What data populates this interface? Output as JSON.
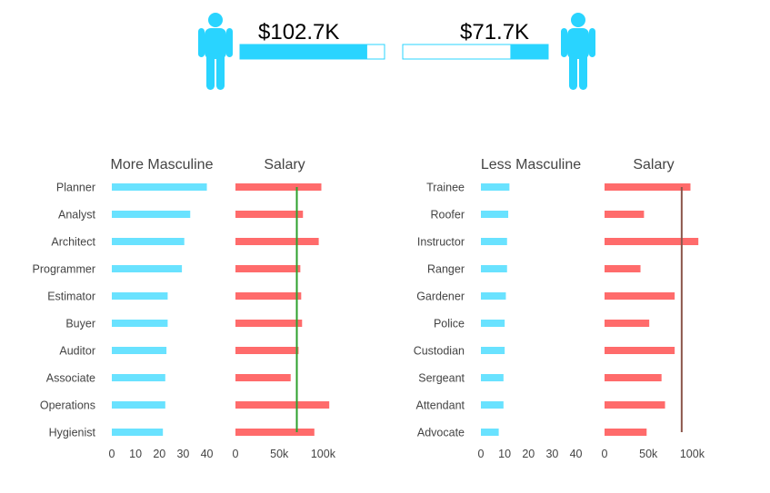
{
  "header": {
    "left_value": "$102.7K",
    "right_value": "$71.7K",
    "left_fill_fraction": 0.88,
    "right_fill_fraction": 0.26,
    "icon_color": "#29D4FF"
  },
  "colors": {
    "masculinity_bar": "#69E2FF",
    "salary_bar": "#FF6B6B",
    "left_reference_line": "#2CA02C",
    "right_reference_line": "#8C564B"
  },
  "chart_data": [
    {
      "type": "bar",
      "orientation": "horizontal",
      "title": "More Masculine",
      "categories": [
        "Planner",
        "Analyst",
        "Architect",
        "Programmer",
        "Estimator",
        "Buyer",
        "Auditor",
        "Associate",
        "Operations",
        "Hygienist"
      ],
      "values": [
        40,
        33,
        30.5,
        29.5,
        23.5,
        23.5,
        23,
        22.5,
        22.5,
        21.5
      ],
      "xlim": [
        0,
        44
      ],
      "xticks": [
        0,
        10,
        20,
        30,
        40
      ],
      "xtick_labels": [
        "0",
        "10",
        "20",
        "30",
        "40"
      ]
    },
    {
      "type": "bar",
      "orientation": "horizontal",
      "title": "Salary",
      "categories": [
        "Planner",
        "Analyst",
        "Architect",
        "Programmer",
        "Estimator",
        "Buyer",
        "Auditor",
        "Associate",
        "Operations",
        "Hygienist"
      ],
      "values": [
        98000,
        77000,
        95000,
        74000,
        75000,
        76000,
        72000,
        63000,
        107000,
        90000
      ],
      "reference_line": 70000,
      "xlim": [
        0,
        112000
      ],
      "xticks": [
        0,
        50000,
        100000
      ],
      "xtick_labels": [
        "0",
        "50k",
        "100k"
      ]
    },
    {
      "type": "bar",
      "orientation": "horizontal",
      "title": "Less Masculine",
      "categories": [
        "Trainee",
        "Roofer",
        "Instructor",
        "Ranger",
        "Gardener",
        "Police",
        "Custodian",
        "Sergeant",
        "Attendant",
        "Advocate"
      ],
      "values": [
        12,
        11.5,
        11,
        11,
        10.5,
        10,
        10,
        9.5,
        9.5,
        7.5
      ],
      "xlim": [
        0,
        44
      ],
      "xticks": [
        0,
        10,
        20,
        30,
        40
      ],
      "xtick_labels": [
        "0",
        "10",
        "20",
        "30",
        "40"
      ]
    },
    {
      "type": "bar",
      "orientation": "horizontal",
      "title": "Salary",
      "categories": [
        "Trainee",
        "Roofer",
        "Instructor",
        "Ranger",
        "Gardener",
        "Police",
        "Custodian",
        "Sergeant",
        "Attendant",
        "Advocate"
      ],
      "values": [
        98000,
        45000,
        107000,
        41000,
        80000,
        51000,
        80000,
        65000,
        69000,
        48000
      ],
      "reference_line": 88000,
      "xlim": [
        0,
        112000
      ],
      "xticks": [
        0,
        50000,
        100000
      ],
      "xtick_labels": [
        "0",
        "50k",
        "100k"
      ]
    }
  ]
}
